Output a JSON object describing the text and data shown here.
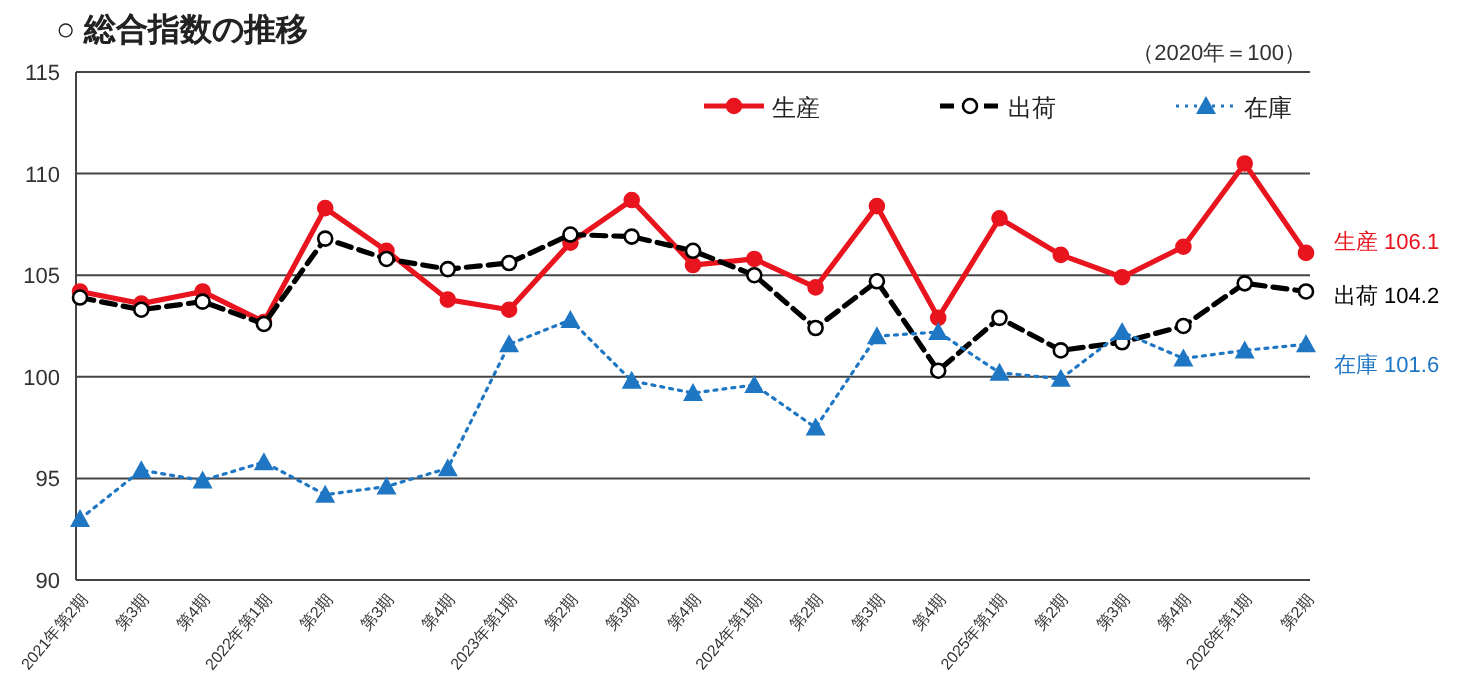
{
  "chart_data": {
    "type": "line",
    "title": "○ 総合指数の推移",
    "categories": [
      "2021年第2期",
      "第3期",
      "第4期",
      "2022年第1期",
      "第2期",
      "第3期",
      "第4期",
      "2023年第1期",
      "第2期",
      "第3期",
      "第4期",
      "2024年第1期",
      "第2期",
      "第3期",
      "第4期",
      "2025年第1期",
      "第2期",
      "第3期",
      "第4期",
      "2026年第1期",
      "第2期"
    ],
    "series": [
      {
        "name": "生産",
        "color": "#e8141e",
        "marker": "circle",
        "line_style": "solid",
        "values": [
          104.2,
          103.6,
          104.2,
          102.7,
          108.3,
          106.2,
          103.8,
          103.3,
          106.6,
          108.7,
          105.5,
          105.8,
          104.4,
          108.4,
          102.9,
          107.8,
          106.0,
          104.9,
          106.4,
          110.5,
          106.1
        ]
      },
      {
        "name": "出荷",
        "color": "#000000",
        "marker": "circle",
        "line_style": "dashed",
        "values": [
          103.9,
          103.3,
          103.7,
          102.6,
          106.8,
          105.8,
          105.3,
          105.6,
          107.0,
          106.9,
          106.2,
          105.0,
          102.4,
          104.7,
          100.3,
          102.9,
          101.3,
          101.7,
          102.5,
          104.6,
          104.2
        ]
      },
      {
        "name": "在庫",
        "color": "#1f77c4",
        "marker": "triangle",
        "line_style": "dotted",
        "values": [
          93.0,
          95.4,
          94.9,
          95.8,
          94.2,
          94.6,
          95.5,
          101.6,
          102.8,
          99.8,
          99.2,
          99.6,
          97.5,
          102.0,
          102.2,
          100.2,
          99.9,
          102.2,
          100.9,
          101.3,
          101.6
        ]
      }
    ],
    "ylim": [
      90,
      115
    ],
    "yticks": [
      90,
      95,
      100,
      105,
      110,
      115
    ],
    "grid": "y",
    "legend": "top right",
    "annotations": [
      "（2020年＝100）",
      "生産 106.1",
      "出荷 104.2",
      "在庫 101.6"
    ]
  }
}
